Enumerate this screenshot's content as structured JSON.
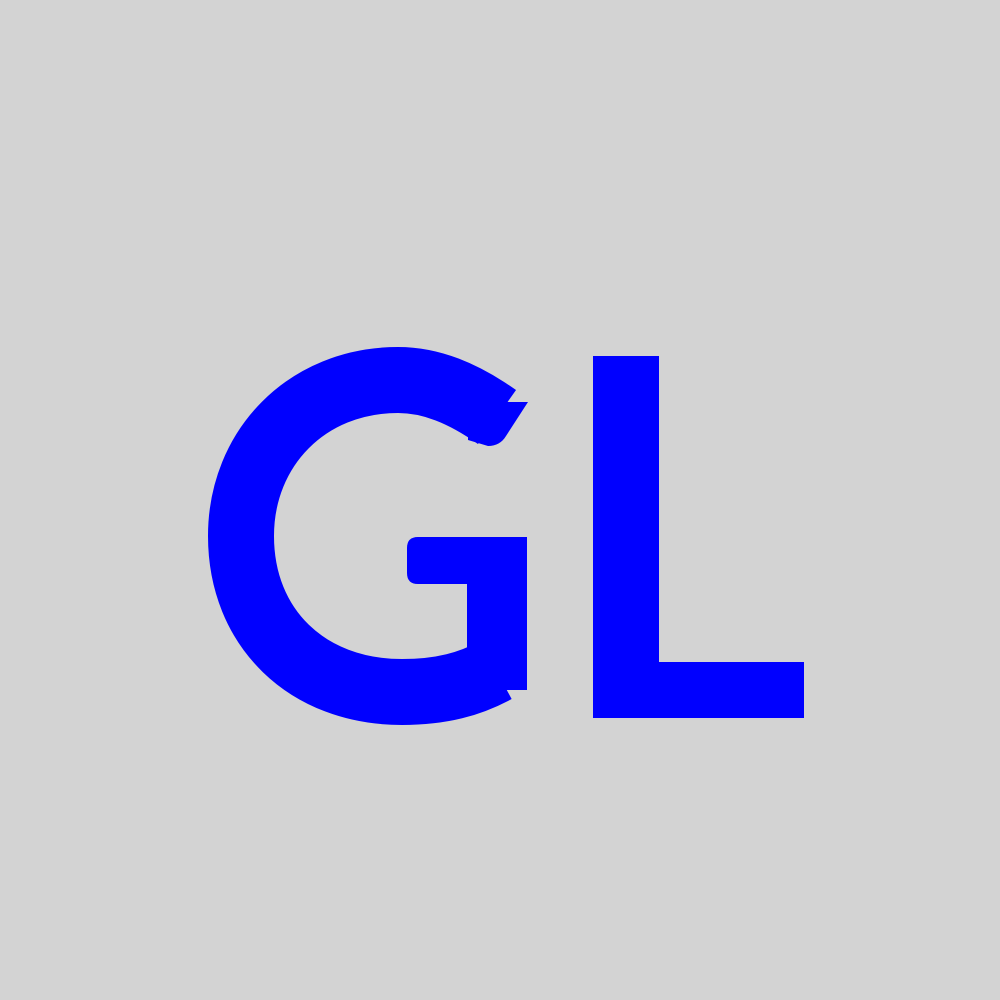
{
  "monogram": {
    "text": "GL",
    "letters": [
      "G",
      "L"
    ],
    "color": "#0000ff"
  },
  "background": {
    "color": "#d3d3d3"
  }
}
